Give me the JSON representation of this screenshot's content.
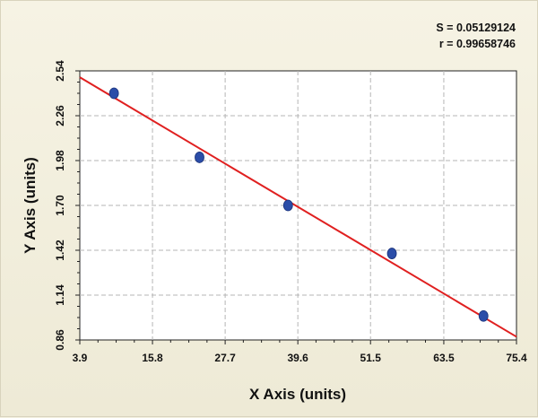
{
  "chart_data": {
    "type": "scatter",
    "xlabel": "X Axis (units)",
    "ylabel": "Y Axis (units)",
    "xlim": [
      3.9,
      75.4
    ],
    "ylim": [
      0.86,
      2.54
    ],
    "x_ticks": [
      "3.9",
      "15.8",
      "27.7",
      "39.6",
      "51.5",
      "63.5",
      "75.4"
    ],
    "y_ticks": [
      "0.86",
      "1.14",
      "1.42",
      "1.70",
      "1.98",
      "2.26",
      "2.54"
    ],
    "grid": true,
    "points": [
      {
        "x": 9.5,
        "y": 2.4
      },
      {
        "x": 23.5,
        "y": 2.0
      },
      {
        "x": 38.0,
        "y": 1.7
      },
      {
        "x": 55.0,
        "y": 1.4
      },
      {
        "x": 70.0,
        "y": 1.01
      }
    ],
    "fit_line": {
      "x": [
        3.9,
        75.4
      ],
      "y": [
        2.5,
        0.88
      ]
    },
    "stats": [
      "S = 0.05129124",
      "r = 0.99658746"
    ],
    "colors": {
      "points": "#2b4da8",
      "line": "#e02020",
      "grid": "#b5b5b5"
    }
  }
}
